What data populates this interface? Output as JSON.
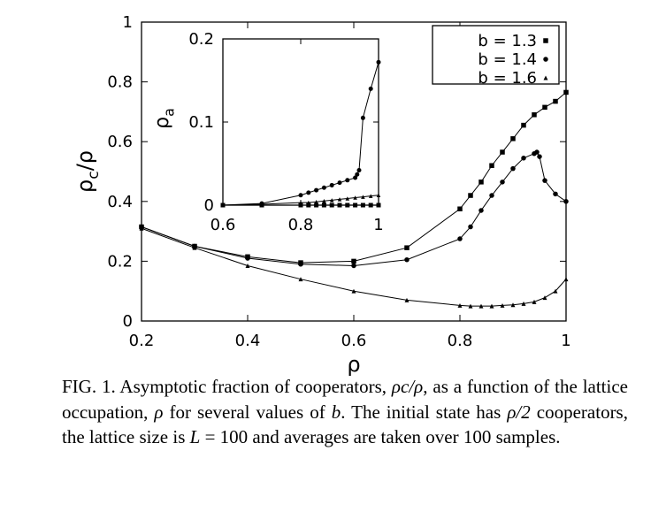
{
  "chart_data": [
    {
      "type": "line",
      "xlabel": "ρ",
      "ylabel": "ρ_c/ρ",
      "xlim": [
        0.2,
        1.0
      ],
      "ylim": [
        0,
        1
      ],
      "xticks": [
        "0.2",
        "0.4",
        "0.6",
        "0.8",
        "1"
      ],
      "yticks": [
        "0",
        "0.2",
        "0.4",
        "0.6",
        "0.8",
        "1"
      ],
      "legend_position": "top-right",
      "series": [
        {
          "name": "b = 1.3",
          "marker": "square",
          "x": [
            0.2,
            0.3,
            0.4,
            0.5,
            0.6,
            0.7,
            0.8,
            0.82,
            0.84,
            0.86,
            0.88,
            0.9,
            0.92,
            0.94,
            0.96,
            0.98,
            1.0
          ],
          "y": [
            0.315,
            0.25,
            0.215,
            0.195,
            0.2,
            0.245,
            0.375,
            0.42,
            0.465,
            0.52,
            0.565,
            0.61,
            0.655,
            0.69,
            0.715,
            0.735,
            0.765
          ]
        },
        {
          "name": "b = 1.4",
          "marker": "circle",
          "x": [
            0.2,
            0.3,
            0.4,
            0.5,
            0.6,
            0.7,
            0.8,
            0.82,
            0.84,
            0.86,
            0.88,
            0.9,
            0.92,
            0.94,
            0.945,
            0.95,
            0.96,
            0.98,
            1.0
          ],
          "y": [
            0.315,
            0.25,
            0.21,
            0.19,
            0.185,
            0.205,
            0.275,
            0.315,
            0.37,
            0.42,
            0.465,
            0.51,
            0.545,
            0.56,
            0.565,
            0.55,
            0.47,
            0.425,
            0.4
          ]
        },
        {
          "name": "b = 1.6",
          "marker": "triangle",
          "x": [
            0.2,
            0.3,
            0.4,
            0.5,
            0.6,
            0.7,
            0.8,
            0.82,
            0.84,
            0.86,
            0.88,
            0.9,
            0.92,
            0.94,
            0.96,
            0.98,
            1.0
          ],
          "y": [
            0.31,
            0.245,
            0.185,
            0.14,
            0.1,
            0.07,
            0.052,
            0.05,
            0.05,
            0.05,
            0.052,
            0.054,
            0.058,
            0.064,
            0.078,
            0.1,
            0.14
          ]
        }
      ]
    },
    {
      "type": "line",
      "xlabel": "",
      "ylabel": "ρ_a",
      "xlim": [
        0.6,
        1.0
      ],
      "ylim": [
        0,
        0.2
      ],
      "xticks": [
        "0.6",
        "0.8",
        "1"
      ],
      "yticks": [
        "0",
        "0.1",
        "0.2"
      ],
      "series": [
        {
          "marker": "square",
          "x": [
            0.6,
            0.7,
            0.8,
            0.82,
            0.84,
            0.86,
            0.88,
            0.9,
            0.92,
            0.94,
            0.96,
            0.98,
            1.0
          ],
          "y": [
            0,
            0,
            0,
            0,
            0,
            0,
            0,
            0,
            0,
            0,
            0,
            0,
            0
          ]
        },
        {
          "marker": "circle",
          "x": [
            0.6,
            0.7,
            0.8,
            0.82,
            0.84,
            0.86,
            0.88,
            0.9,
            0.92,
            0.94,
            0.945,
            0.95,
            0.96,
            0.98,
            1.0
          ],
          "y": [
            0,
            0.002,
            0.012,
            0.015,
            0.018,
            0.021,
            0.024,
            0.027,
            0.03,
            0.033,
            0.037,
            0.042,
            0.105,
            0.14,
            0.172
          ]
        },
        {
          "marker": "triangle",
          "x": [
            0.6,
            0.7,
            0.8,
            0.82,
            0.84,
            0.86,
            0.88,
            0.9,
            0.92,
            0.94,
            0.96,
            0.98,
            1.0
          ],
          "y": [
            0,
            0.001,
            0.003,
            0.003,
            0.004,
            0.005,
            0.006,
            0.007,
            0.008,
            0.009,
            0.01,
            0.011,
            0.012
          ]
        }
      ]
    }
  ],
  "caption": {
    "part1": "FIG. 1. Asymptotic fraction of cooperators, ",
    "math1": "ρc/ρ",
    "part2": ", as a function of the lattice occupation, ",
    "math2": "ρ",
    "part3": " for several values of ",
    "math3": "b",
    "part4": ". The initial state has ",
    "math4": "ρ/2",
    "part5": " cooperators, the lattice size is ",
    "math5": "L",
    "part6": " = 100 and averages are taken over 100 samples."
  },
  "colors": {
    "line": "#000000",
    "background": "#ffffff"
  }
}
